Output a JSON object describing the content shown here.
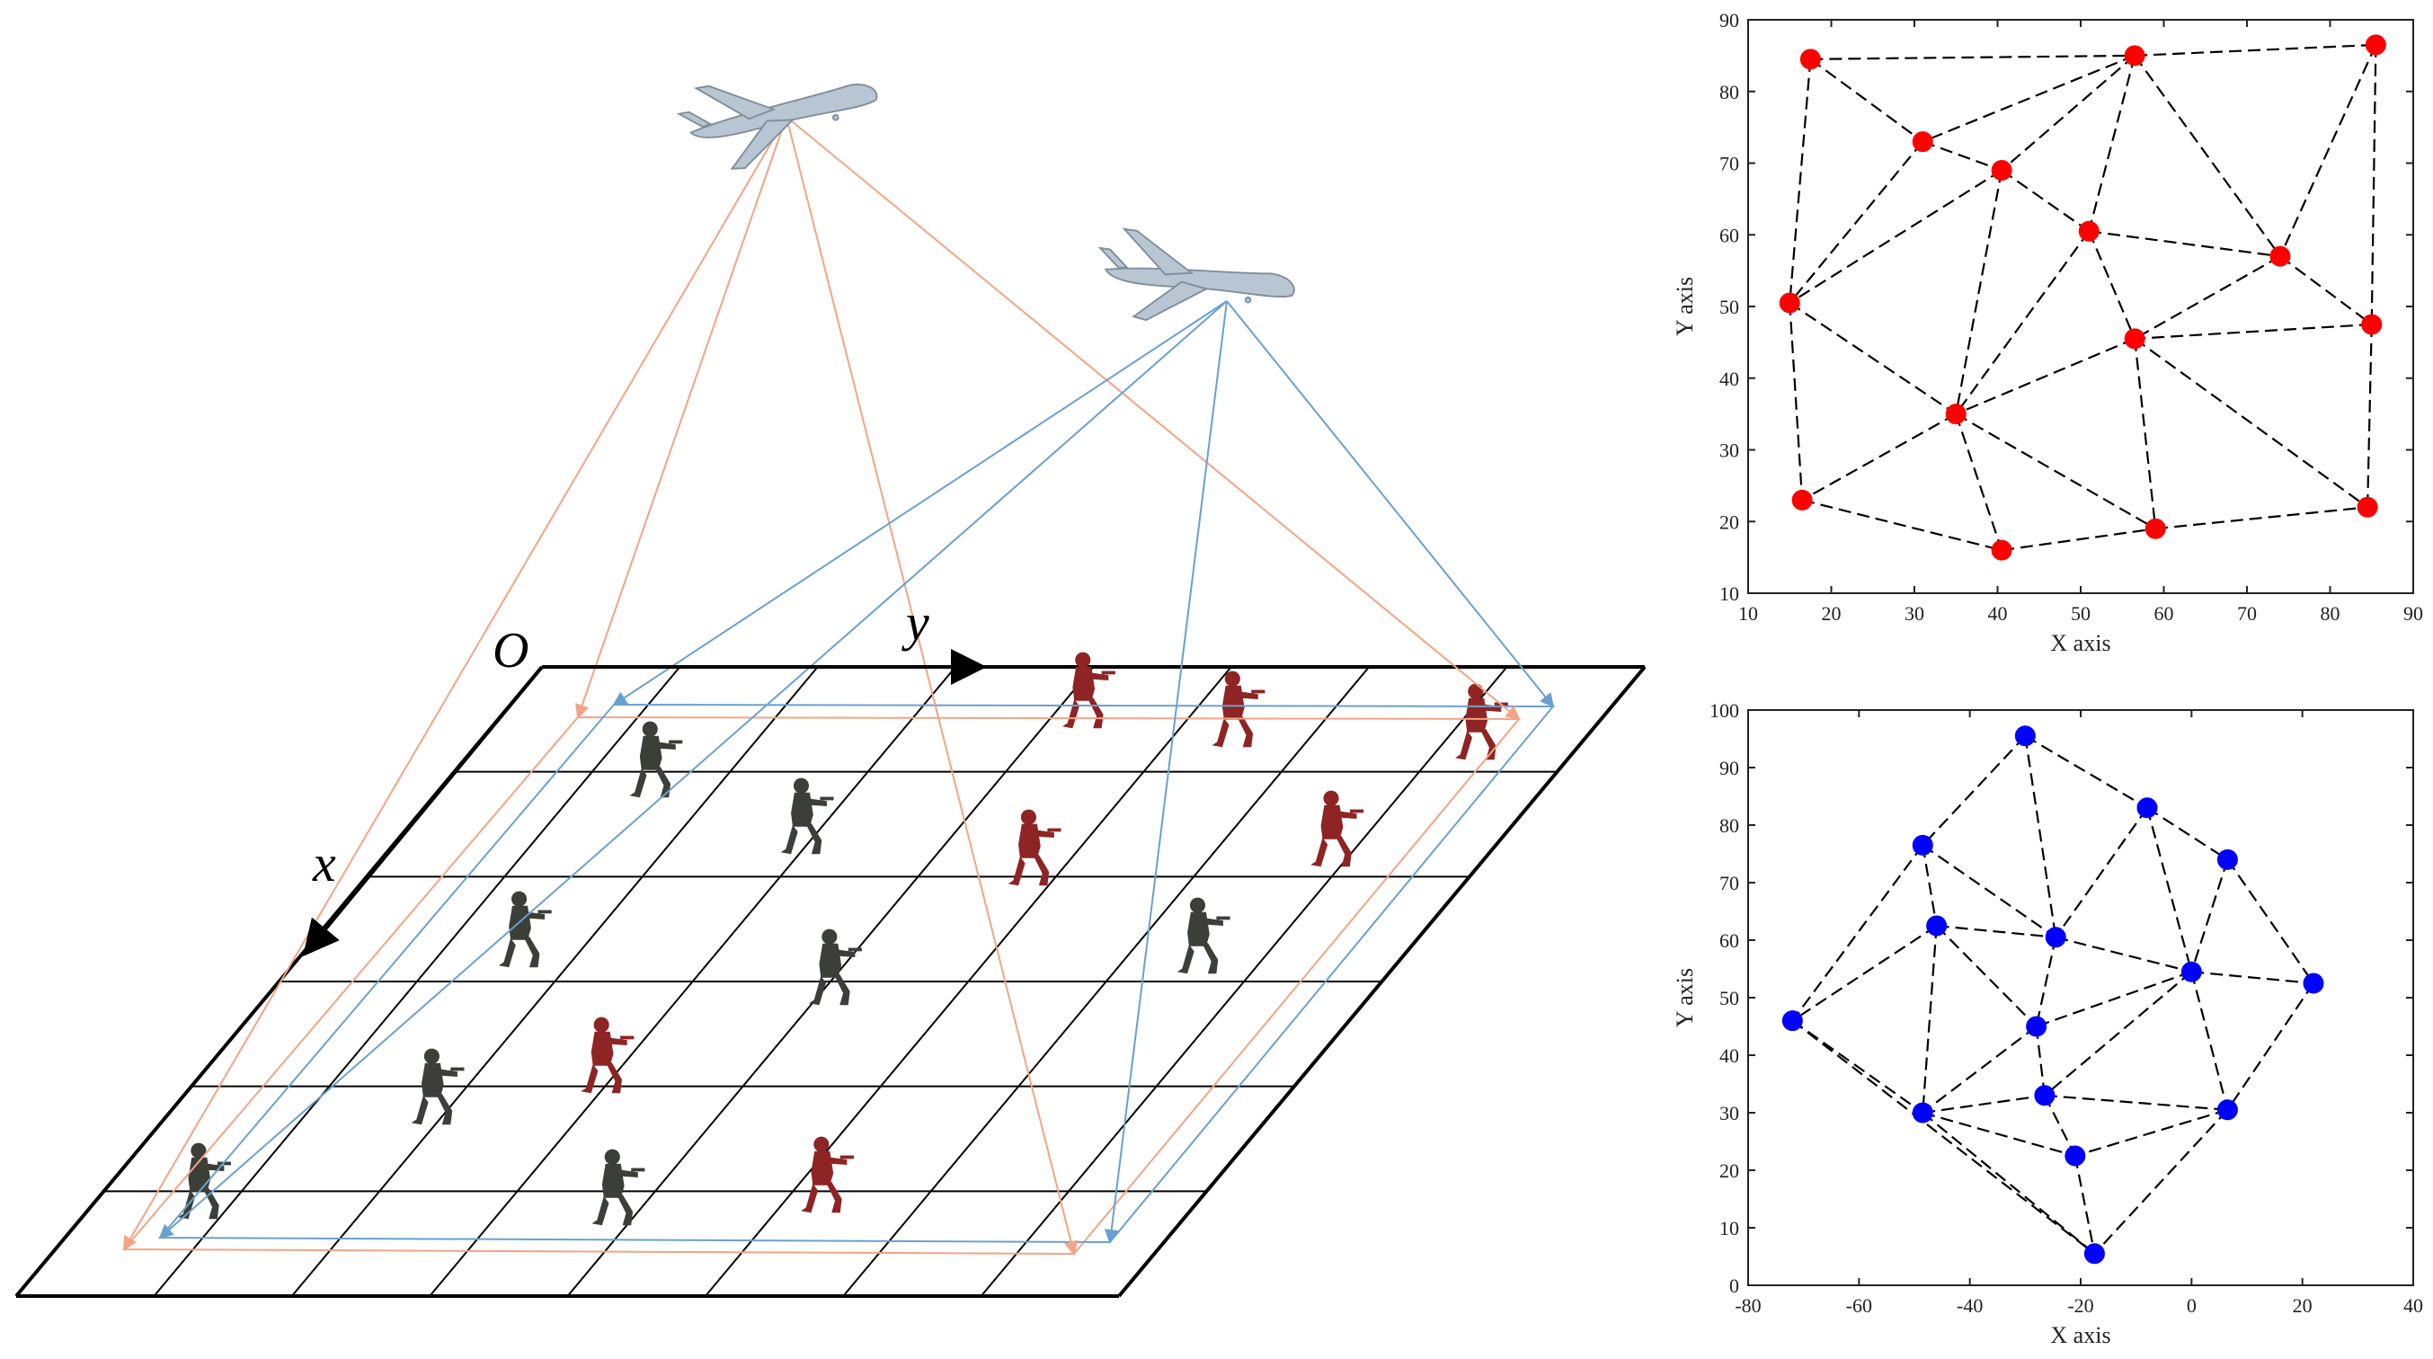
{
  "scene": {
    "origin_label": "O",
    "x_axis_label": "x",
    "y_axis_label": "y",
    "grid_columns": 8,
    "grid_rows": 6,
    "footprint_colors": {
      "drone1": "#f2a484",
      "drone2": "#6aa0d0"
    },
    "soldier_colors": {
      "friendly": "#3b3f38",
      "hostile": "#8e2424"
    },
    "icons": {
      "drone": "drone-icon",
      "soldier": "soldier-icon"
    }
  },
  "chart_data": [
    {
      "type": "scatter",
      "title": "",
      "xlabel": "X axis",
      "ylabel": "Y axis",
      "xlim": [
        10,
        90
      ],
      "ylim": [
        10,
        90
      ],
      "xticks": [
        10,
        20,
        30,
        40,
        50,
        60,
        70,
        80,
        90
      ],
      "yticks": [
        10,
        20,
        30,
        40,
        50,
        60,
        70,
        80,
        90
      ],
      "marker_color": "#ff0000",
      "edge_style": "dashed",
      "points": [
        [
          17.5,
          84.5
        ],
        [
          56.5,
          85.0
        ],
        [
          85.5,
          86.5
        ],
        [
          31.0,
          73.0
        ],
        [
          40.5,
          69.0
        ],
        [
          51.0,
          60.5
        ],
        [
          74.0,
          57.0
        ],
        [
          85.0,
          47.5
        ],
        [
          15.0,
          50.5
        ],
        [
          56.5,
          45.5
        ],
        [
          35.0,
          35.0
        ],
        [
          16.5,
          23.0
        ],
        [
          40.5,
          16.0
        ],
        [
          59.0,
          19.0
        ],
        [
          84.5,
          22.0
        ]
      ],
      "edges": [
        [
          0,
          1
        ],
        [
          1,
          2
        ],
        [
          0,
          3
        ],
        [
          0,
          8
        ],
        [
          1,
          3
        ],
        [
          1,
          4
        ],
        [
          1,
          5
        ],
        [
          1,
          6
        ],
        [
          2,
          6
        ],
        [
          2,
          7
        ],
        [
          3,
          4
        ],
        [
          3,
          8
        ],
        [
          4,
          8
        ],
        [
          4,
          5
        ],
        [
          4,
          10
        ],
        [
          5,
          6
        ],
        [
          5,
          10
        ],
        [
          5,
          9
        ],
        [
          6,
          9
        ],
        [
          6,
          7
        ],
        [
          7,
          9
        ],
        [
          7,
          14
        ],
        [
          8,
          10
        ],
        [
          8,
          11
        ],
        [
          9,
          10
        ],
        [
          9,
          13
        ],
        [
          9,
          14
        ],
        [
          10,
          11
        ],
        [
          10,
          12
        ],
        [
          10,
          13
        ],
        [
          11,
          12
        ],
        [
          12,
          13
        ],
        [
          13,
          14
        ]
      ]
    },
    {
      "type": "scatter",
      "title": "",
      "xlabel": "X axis",
      "ylabel": "Y axis",
      "xlim": [
        -80,
        40
      ],
      "ylim": [
        0,
        100
      ],
      "xticks": [
        -80,
        -60,
        -40,
        -20,
        0,
        20,
        40
      ],
      "yticks": [
        0,
        10,
        20,
        30,
        40,
        50,
        60,
        70,
        80,
        90,
        100
      ],
      "marker_color": "#0000ff",
      "edge_style": "dashed",
      "points": [
        [
          -30.0,
          95.5
        ],
        [
          -8.0,
          83.0
        ],
        [
          -48.5,
          76.5
        ],
        [
          6.5,
          74.0
        ],
        [
          -46.0,
          62.5
        ],
        [
          -24.5,
          60.5
        ],
        [
          0.0,
          54.5
        ],
        [
          22.0,
          52.5
        ],
        [
          -72.0,
          46.0
        ],
        [
          -28.0,
          45.0
        ],
        [
          -48.5,
          30.0
        ],
        [
          -26.5,
          33.0
        ],
        [
          6.5,
          30.5
        ],
        [
          -21.0,
          22.5
        ],
        [
          -17.5,
          5.5
        ]
      ],
      "edges": [
        [
          0,
          2
        ],
        [
          0,
          1
        ],
        [
          0,
          5
        ],
        [
          1,
          5
        ],
        [
          1,
          6
        ],
        [
          1,
          3
        ],
        [
          2,
          4
        ],
        [
          2,
          5
        ],
        [
          2,
          8
        ],
        [
          3,
          6
        ],
        [
          3,
          7
        ],
        [
          4,
          5
        ],
        [
          4,
          9
        ],
        [
          4,
          10
        ],
        [
          4,
          8
        ],
        [
          5,
          9
        ],
        [
          5,
          6
        ],
        [
          6,
          9
        ],
        [
          6,
          11
        ],
        [
          6,
          7
        ],
        [
          6,
          12
        ],
        [
          7,
          12
        ],
        [
          8,
          10
        ],
        [
          8,
          14
        ],
        [
          9,
          10
        ],
        [
          9,
          11
        ],
        [
          10,
          11
        ],
        [
          10,
          13
        ],
        [
          10,
          14
        ],
        [
          11,
          12
        ],
        [
          11,
          13
        ],
        [
          12,
          13
        ],
        [
          12,
          14
        ],
        [
          13,
          14
        ]
      ]
    }
  ]
}
